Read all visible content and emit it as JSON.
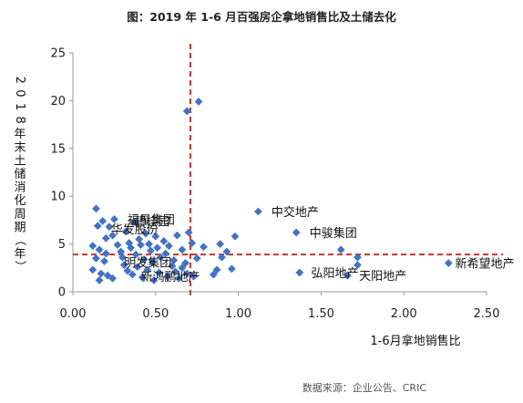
{
  "chart_data": {
    "type": "scatter",
    "title": "图：2019 年 1-6 月百强房企拿地销售比及土储去化",
    "xlabel": "1-6月拿地销售比",
    "ylabel": "2018年末土储消化周期（年）",
    "xlim": [
      0,
      2.5
    ],
    "ylim": [
      0,
      25
    ],
    "x_ticks": [
      "0.00",
      "0.50",
      "1.00",
      "1.50",
      "2.00",
      "2.50"
    ],
    "y_ticks": [
      "0",
      "5",
      "10",
      "15",
      "20",
      "25"
    ],
    "x_tick_values": [
      0,
      0.5,
      1.0,
      1.5,
      2.0,
      2.5
    ],
    "y_tick_values": [
      0,
      5,
      10,
      15,
      20,
      25
    ],
    "grid": false,
    "marker_color": "#4472C4",
    "reference_line_color": "#C0392B",
    "reference_lines": {
      "x": 0.71,
      "y": 3.9
    },
    "source": "数据来源：企业公告、CRIC",
    "points": [
      {
        "x": 0.14,
        "y": 8.7
      },
      {
        "x": 0.15,
        "y": 6.9
      },
      {
        "x": 0.18,
        "y": 7.4
      },
      {
        "x": 0.22,
        "y": 6.8
      },
      {
        "x": 0.25,
        "y": 7.6
      },
      {
        "x": 0.2,
        "y": 5.6
      },
      {
        "x": 0.24,
        "y": 5.9
      },
      {
        "x": 0.12,
        "y": 4.8
      },
      {
        "x": 0.16,
        "y": 4.4
      },
      {
        "x": 0.2,
        "y": 4.0
      },
      {
        "x": 0.14,
        "y": 3.5
      },
      {
        "x": 0.19,
        "y": 3.2
      },
      {
        "x": 0.12,
        "y": 2.3
      },
      {
        "x": 0.17,
        "y": 1.9
      },
      {
        "x": 0.21,
        "y": 1.7
      },
      {
        "x": 0.24,
        "y": 1.4
      },
      {
        "x": 0.16,
        "y": 1.2
      },
      {
        "x": 0.27,
        "y": 4.9
      },
      {
        "x": 0.29,
        "y": 4.2
      },
      {
        "x": 0.3,
        "y": 3.6
      },
      {
        "x": 0.32,
        "y": 6.3
      },
      {
        "x": 0.34,
        "y": 5.1
      },
      {
        "x": 0.35,
        "y": 4.6
      },
      {
        "x": 0.37,
        "y": 7.3
      },
      {
        "x": 0.38,
        "y": 3.9
      },
      {
        "x": 0.4,
        "y": 5.5
      },
      {
        "x": 0.41,
        "y": 4.9
      },
      {
        "x": 0.43,
        "y": 3.4
      },
      {
        "x": 0.44,
        "y": 6.1
      },
      {
        "x": 0.46,
        "y": 5.0
      },
      {
        "x": 0.47,
        "y": 4.3
      },
      {
        "x": 0.48,
        "y": 3.1
      },
      {
        "x": 0.5,
        "y": 5.8
      },
      {
        "x": 0.51,
        "y": 4.6
      },
      {
        "x": 0.53,
        "y": 3.6
      },
      {
        "x": 0.55,
        "y": 5.3
      },
      {
        "x": 0.56,
        "y": 4.0
      },
      {
        "x": 0.31,
        "y": 2.8
      },
      {
        "x": 0.33,
        "y": 2.2
      },
      {
        "x": 0.36,
        "y": 1.8
      },
      {
        "x": 0.39,
        "y": 2.6
      },
      {
        "x": 0.42,
        "y": 1.5
      },
      {
        "x": 0.45,
        "y": 2.3
      },
      {
        "x": 0.49,
        "y": 1.2
      },
      {
        "x": 0.52,
        "y": 2.0
      },
      {
        "x": 0.57,
        "y": 1.6
      },
      {
        "x": 0.6,
        "y": 2.7
      },
      {
        "x": 0.62,
        "y": 2.1
      },
      {
        "x": 0.64,
        "y": 1.4
      },
      {
        "x": 0.58,
        "y": 4.8
      },
      {
        "x": 0.61,
        "y": 3.3
      },
      {
        "x": 0.63,
        "y": 5.9
      },
      {
        "x": 0.66,
        "y": 4.4
      },
      {
        "x": 0.68,
        "y": 3.0
      },
      {
        "x": 0.7,
        "y": 6.2
      },
      {
        "x": 0.72,
        "y": 5.1
      },
      {
        "x": 0.66,
        "y": 2.5
      },
      {
        "x": 0.69,
        "y": 1.9
      },
      {
        "x": 0.73,
        "y": 1.6
      },
      {
        "x": 0.75,
        "y": 3.5
      },
      {
        "x": 0.79,
        "y": 4.7
      },
      {
        "x": 0.85,
        "y": 1.8
      },
      {
        "x": 0.87,
        "y": 2.3
      },
      {
        "x": 0.89,
        "y": 5.0
      },
      {
        "x": 0.9,
        "y": 3.6
      },
      {
        "x": 0.93,
        "y": 4.2
      },
      {
        "x": 0.96,
        "y": 2.4
      },
      {
        "x": 0.98,
        "y": 5.8
      },
      {
        "x": 0.69,
        "y": 18.9
      },
      {
        "x": 0.76,
        "y": 19.9
      },
      {
        "x": 1.12,
        "y": 8.4
      },
      {
        "x": 1.35,
        "y": 6.2
      },
      {
        "x": 1.37,
        "y": 2.0
      },
      {
        "x": 1.62,
        "y": 4.4
      },
      {
        "x": 1.66,
        "y": 1.7
      },
      {
        "x": 1.72,
        "y": 3.6
      },
      {
        "x": 1.72,
        "y": 2.8
      },
      {
        "x": 2.27,
        "y": 3.0
      }
    ],
    "annotations": [
      {
        "text": "碧桂园",
        "x": 0.37,
        "y": 7.4
      },
      {
        "text": "华发股份",
        "x": 0.23,
        "y": 6.6
      },
      {
        "text": "福星集团",
        "x": 0.33,
        "y": 7.6
      },
      {
        "text": "明发集团",
        "x": 0.31,
        "y": 3.1
      },
      {
        "text": "新鸿鹏地产",
        "x": 0.41,
        "y": 1.6
      },
      {
        "text": "中交地产",
        "x": 1.2,
        "y": 8.4
      },
      {
        "text": "中骏集团",
        "x": 1.43,
        "y": 6.2
      },
      {
        "text": "弘阳地产",
        "x": 1.44,
        "y": 2.0
      },
      {
        "text": "天阳地产",
        "x": 1.73,
        "y": 1.7
      },
      {
        "text": "新希望地产",
        "x": 2.31,
        "y": 3.0
      }
    ]
  }
}
